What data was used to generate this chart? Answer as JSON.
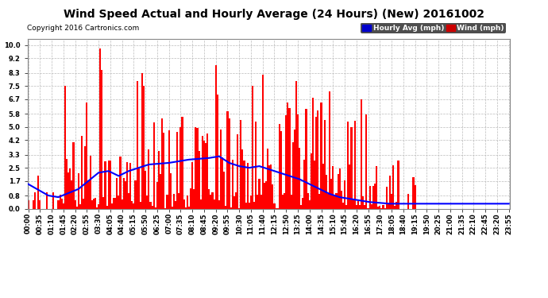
{
  "title": "Wind Speed Actual and Hourly Average (24 Hours) (New) 20161002",
  "copyright": "Copyright 2016 Cartronics.com",
  "yticks": [
    0.0,
    0.8,
    1.7,
    2.5,
    3.3,
    4.2,
    5.0,
    5.8,
    6.7,
    7.5,
    8.3,
    9.2,
    10.0
  ],
  "ylim": [
    0.0,
    10.4
  ],
  "bar_color": "#ff0000",
  "line_color": "#0000ff",
  "legend_hourly_color": "#0000cc",
  "legend_wind_color": "#cc0000",
  "background_color": "#ffffff",
  "grid_color": "#bbbbbb",
  "title_fontsize": 10,
  "copyright_fontsize": 6.5,
  "figsize": [
    6.9,
    3.75
  ],
  "dpi": 100,
  "label_interval": 7,
  "n_points": 288
}
